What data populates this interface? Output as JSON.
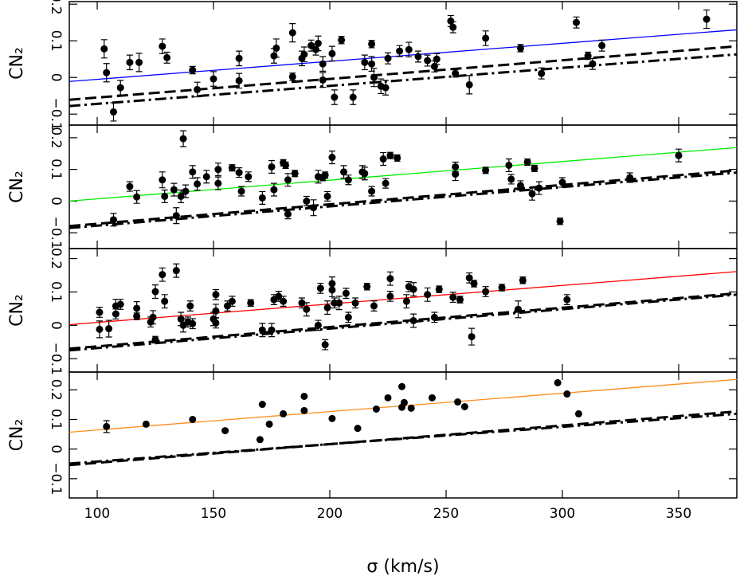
{
  "chart_data": [
    {
      "type": "scatter",
      "ylabel": "CN₂",
      "xlim": [
        88,
        375
      ],
      "ylim": [
        -0.13,
        0.207
      ],
      "xticks": [
        100,
        150,
        200,
        250,
        300,
        350
      ],
      "yticks": [
        {
          "value": -0.1,
          "label": "−0.1"
        },
        0,
        0.1,
        0.2
      ],
      "points": {
        "color": "#000000",
        "x": [
          103,
          104,
          107,
          110,
          114,
          118,
          128,
          130,
          141,
          143,
          150,
          161,
          161,
          176,
          177,
          184,
          184,
          188,
          189,
          192,
          194,
          195,
          197,
          197,
          201,
          202,
          205,
          210,
          215,
          218,
          218,
          219,
          222,
          224,
          225,
          230,
          234,
          238,
          242,
          245,
          246,
          252,
          253,
          254,
          260,
          267,
          282,
          291,
          306,
          311,
          313,
          317,
          362
        ],
        "y": [
          0.078,
          0.013,
          -0.094,
          -0.028,
          0.041,
          0.041,
          0.085,
          0.054,
          0.02,
          -0.033,
          -0.004,
          0.052,
          -0.009,
          0.059,
          0.08,
          0.122,
          0.002,
          0.052,
          0.063,
          0.087,
          0.076,
          0.093,
          -0.007,
          0.037,
          0.065,
          -0.054,
          0.102,
          -0.054,
          0.041,
          0.091,
          0.037,
          0.0,
          -0.024,
          -0.028,
          0.052,
          0.072,
          0.076,
          0.057,
          0.046,
          0.03,
          0.05,
          0.154,
          0.137,
          0.011,
          -0.02,
          0.107,
          0.08,
          0.011,
          0.15,
          0.059,
          0.037,
          0.087,
          0.159
        ],
        "errors": [
          0.025,
          0.025,
          0.025,
          0.02,
          0.02,
          0.025,
          0.02,
          0.015,
          0.01,
          0.02,
          0.02,
          0.02,
          0.02,
          0.02,
          0.025,
          0.025,
          0.01,
          0.02,
          0.02,
          0.015,
          0.015,
          0.02,
          0.02,
          0.02,
          0.02,
          0.02,
          0.01,
          0.02,
          0.02,
          0.01,
          0.02,
          0.025,
          0.02,
          0.02,
          0.015,
          0.015,
          0.02,
          0.015,
          0.015,
          0.015,
          0.015,
          0.015,
          0.015,
          0.01,
          0.025,
          0.02,
          0.01,
          0.015,
          0.015,
          0.01,
          0.015,
          0.015,
          0.025
        ]
      },
      "lines": [
        {
          "color": "#0000ff",
          "style": "solid",
          "x": [
            88,
            375
          ],
          "y": [
            -0.011,
            0.13
          ]
        },
        {
          "color": "#000000",
          "style": "dashed",
          "x": [
            88,
            375
          ],
          "y": [
            -0.061,
            0.085
          ]
        },
        {
          "color": "#000000",
          "style": "dashdot",
          "x": [
            88,
            375
          ],
          "y": [
            -0.078,
            0.063
          ]
        }
      ]
    },
    {
      "type": "scatter",
      "ylabel": "CN₂",
      "xlim": [
        88,
        375
      ],
      "ylim": [
        -0.15,
        0.24
      ],
      "xticks": [
        100,
        150,
        200,
        250,
        300,
        350
      ],
      "yticks": [
        {
          "value": -0.1,
          "label": "−0.1"
        },
        0,
        0.1,
        0.2
      ],
      "points": {
        "color": "#000000",
        "x": [
          107,
          114,
          117,
          128,
          129,
          133,
          134,
          136,
          137,
          138,
          141,
          143,
          147,
          152,
          152,
          158,
          161,
          162,
          165,
          171,
          175,
          176,
          180,
          181,
          182,
          182,
          185,
          190,
          193,
          195,
          197,
          198,
          199,
          201,
          206,
          208,
          214,
          215,
          218,
          223,
          224,
          226,
          229,
          254,
          254,
          267,
          277,
          278,
          282,
          285,
          287,
          288,
          290,
          299,
          300,
          329,
          350
        ],
        "y": [
          -0.059,
          0.046,
          0.013,
          0.067,
          0.015,
          0.036,
          -0.046,
          0.015,
          0.197,
          0.031,
          0.092,
          0.054,
          0.077,
          0.1,
          0.056,
          0.105,
          0.09,
          0.031,
          0.077,
          0.01,
          0.108,
          0.036,
          0.121,
          0.113,
          -0.041,
          0.067,
          0.087,
          0.0,
          -0.021,
          0.077,
          0.074,
          0.082,
          0.015,
          0.138,
          0.092,
          0.067,
          0.092,
          0.087,
          0.031,
          0.133,
          0.056,
          0.144,
          0.136,
          0.108,
          0.085,
          0.097,
          0.113,
          0.069,
          0.049,
          0.123,
          0.023,
          0.103,
          0.041,
          -0.064,
          0.059,
          0.074,
          0.144
        ],
        "errors": [
          0.02,
          0.015,
          0.02,
          0.025,
          0.02,
          0.02,
          0.025,
          0.02,
          0.025,
          0.02,
          0.02,
          0.02,
          0.02,
          0.02,
          0.02,
          0.01,
          0.015,
          0.015,
          0.015,
          0.02,
          0.02,
          0.02,
          0.01,
          0.01,
          0.015,
          0.02,
          0.01,
          0.015,
          0.025,
          0.02,
          0.01,
          0.01,
          0.015,
          0.02,
          0.02,
          0.015,
          0.02,
          0.02,
          0.015,
          0.02,
          0.015,
          0.01,
          0.01,
          0.015,
          0.02,
          0.01,
          0.02,
          0.015,
          0.015,
          0.01,
          0.02,
          0.01,
          0.02,
          0.01,
          0.015,
          0.015,
          0.02
        ]
      },
      "lines": [
        {
          "color": "#00ee00",
          "style": "solid",
          "x": [
            88,
            375
          ],
          "y": [
            0.0,
            0.169
          ]
        },
        {
          "color": "#000000",
          "style": "dashed",
          "x": [
            88,
            375
          ],
          "y": [
            -0.079,
            0.097
          ]
        },
        {
          "color": "#000000",
          "style": "dashdot",
          "x": [
            88,
            375
          ],
          "y": [
            -0.085,
            0.09
          ]
        }
      ]
    },
    {
      "type": "scatter",
      "ylabel": "CN₂",
      "xlim": [
        88,
        375
      ],
      "ylim": [
        -0.14,
        0.23
      ],
      "xticks": [
        100,
        150,
        200,
        250,
        300,
        350
      ],
      "yticks": [
        {
          "value": -0.1,
          "label": "−0.1"
        },
        0,
        0.1,
        0.2
      ],
      "points": {
        "color": "#000000",
        "x": [
          101,
          101,
          105,
          108,
          110,
          108,
          117,
          117,
          123,
          124,
          125,
          125,
          128,
          129,
          134,
          136,
          137,
          139,
          140,
          141,
          150,
          151,
          151,
          151,
          156,
          158,
          166,
          171,
          175,
          176,
          178,
          180,
          188,
          190,
          195,
          196,
          198,
          199,
          201,
          201,
          202,
          204,
          207,
          208,
          211,
          216,
          219,
          226,
          226,
          233,
          234,
          236,
          236,
          242,
          245,
          247,
          253,
          256,
          260,
          262,
          261,
          267,
          274,
          281,
          283,
          302
        ],
        "y": [
          0.039,
          -0.012,
          -0.01,
          0.058,
          0.063,
          0.034,
          0.027,
          0.051,
          0.01,
          0.024,
          -0.043,
          0.101,
          0.152,
          0.072,
          0.164,
          0.019,
          0.0,
          0.01,
          0.058,
          0.005,
          0.019,
          0.092,
          0.043,
          0.007,
          0.058,
          0.072,
          0.067,
          -0.014,
          -0.014,
          0.077,
          0.087,
          0.072,
          0.067,
          0.048,
          0.0,
          0.111,
          -0.058,
          0.053,
          0.106,
          0.125,
          0.067,
          0.067,
          0.096,
          0.024,
          0.067,
          0.116,
          0.058,
          0.14,
          0.087,
          0.072,
          0.116,
          0.108,
          0.014,
          0.092,
          0.024,
          0.108,
          0.084,
          0.077,
          0.142,
          0.125,
          -0.034,
          0.101,
          0.113,
          0.048,
          0.135,
          0.077
        ],
        "errors": [
          0.015,
          0.025,
          0.025,
          0.02,
          0.015,
          0.015,
          0.01,
          0.02,
          0.015,
          0.02,
          0.01,
          0.02,
          0.02,
          0.02,
          0.02,
          0.02,
          0.02,
          0.015,
          0.015,
          0.015,
          0.02,
          0.015,
          0.02,
          0.015,
          0.015,
          0.015,
          0.01,
          0.02,
          0.02,
          0.015,
          0.015,
          0.015,
          0.015,
          0.02,
          0.015,
          0.015,
          0.015,
          0.02,
          0.02,
          0.02,
          0.015,
          0.02,
          0.015,
          0.015,
          0.015,
          0.01,
          0.015,
          0.02,
          0.015,
          0.02,
          0.015,
          0.02,
          0.02,
          0.02,
          0.015,
          0.01,
          0.015,
          0.01,
          0.015,
          0.01,
          0.025,
          0.015,
          0.01,
          0.025,
          0.01,
          0.015
        ]
      },
      "lines": [
        {
          "color": "#ff0000",
          "style": "solid",
          "x": [
            88,
            375
          ],
          "y": [
            0.002,
            0.161
          ]
        },
        {
          "color": "#000000",
          "style": "dashed",
          "x": [
            88,
            375
          ],
          "y": [
            -0.07,
            0.096
          ]
        },
        {
          "color": "#000000",
          "style": "dashdot",
          "x": [
            88,
            375
          ],
          "y": [
            -0.075,
            0.092
          ]
        }
      ]
    },
    {
      "type": "scatter",
      "ylabel": "CN₂",
      "xlabel": "σ  (km/s)",
      "xlim": [
        88,
        375
      ],
      "ylim": [
        -0.165,
        0.26
      ],
      "xticks": [
        100,
        150,
        200,
        250,
        300,
        350
      ],
      "yticks": [
        {
          "value": -0.1,
          "label": "−0.1"
        },
        0,
        0.1,
        0.2
      ],
      "points": {
        "color": "#000000",
        "x": [
          104,
          121,
          141,
          155,
          170,
          171,
          174,
          180,
          189,
          189,
          201,
          212,
          220,
          225,
          231,
          231,
          232,
          235,
          244,
          255,
          258,
          298,
          302,
          307
        ],
        "y": [
          0.076,
          0.084,
          0.1,
          0.062,
          0.032,
          0.151,
          0.084,
          0.119,
          0.178,
          0.13,
          0.103,
          0.07,
          0.135,
          0.173,
          0.211,
          0.141,
          0.157,
          0.138,
          0.173,
          0.159,
          0.143,
          0.224,
          0.186,
          0.119
        ],
        "errors": [
          0.02,
          null,
          null,
          null,
          null,
          null,
          null,
          null,
          null,
          null,
          null,
          null,
          null,
          null,
          null,
          null,
          null,
          null,
          null,
          null,
          null,
          null,
          null,
          null
        ]
      },
      "lines": [
        {
          "color": "#ff8c1a",
          "style": "solid",
          "x": [
            88,
            375
          ],
          "y": [
            0.057,
            0.235
          ]
        },
        {
          "color": "#000000",
          "style": "dashed",
          "x": [
            88,
            375
          ],
          "y": [
            -0.054,
            0.127
          ]
        },
        {
          "color": "#000000",
          "style": "dashdot",
          "x": [
            88,
            375
          ],
          "y": [
            -0.049,
            0.119
          ]
        }
      ]
    }
  ]
}
